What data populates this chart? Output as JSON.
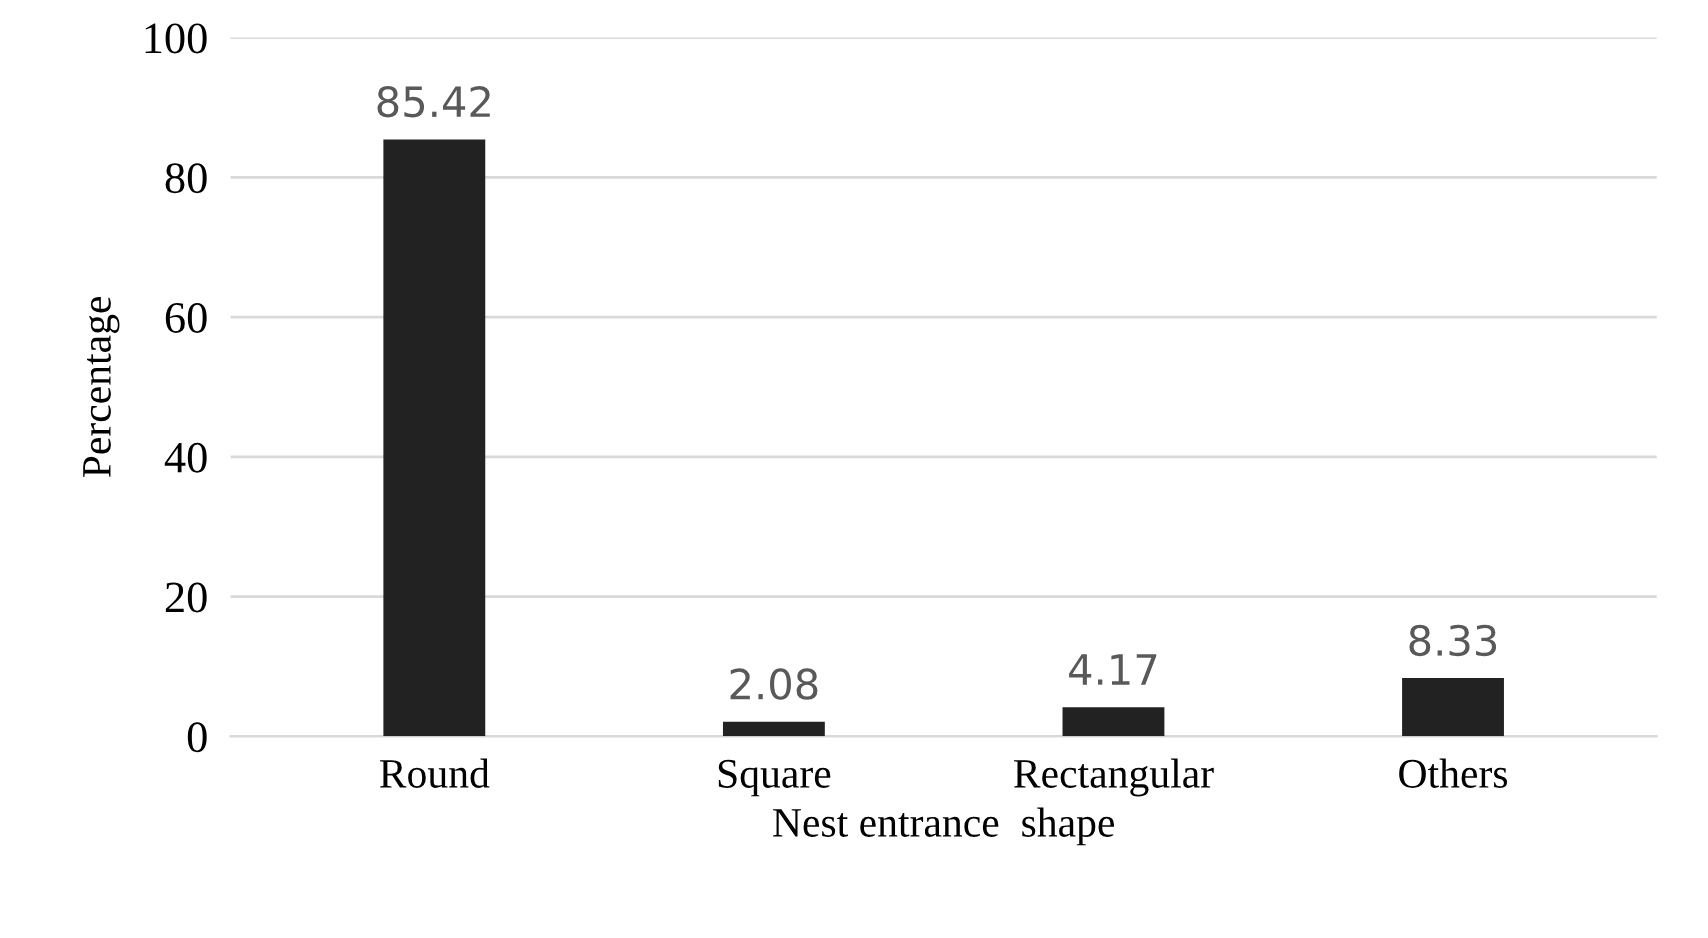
{
  "chart_data": {
    "type": "bar",
    "xlabel": "Nest entrance  shape",
    "ylabel": "Percentage",
    "categories": [
      "Round",
      "Square",
      "Rectangular",
      "Others"
    ],
    "values": [
      85.42,
      2.08,
      4.17,
      8.33
    ],
    "color": "#222222",
    "ylim": [
      0,
      100
    ],
    "yticks": [
      0,
      20,
      40,
      60,
      80,
      100
    ],
    "grid": "y",
    "data_labels": true
  }
}
